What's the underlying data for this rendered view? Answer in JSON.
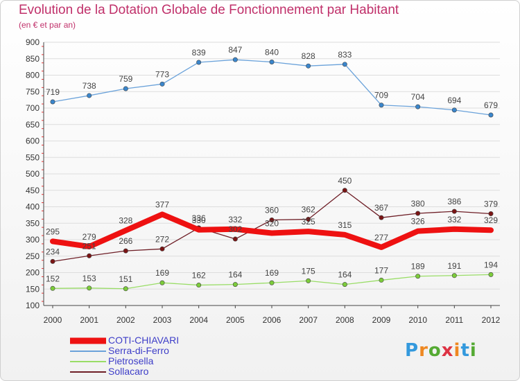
{
  "title": "Evolution de la Dotation Globale de Fonctionnement par Habitant",
  "subtitle": "(en € et par an)",
  "chart_data": {
    "type": "line",
    "title": "Evolution de la Dotation Globale de Fonctionnement par Habitant",
    "subtitle": "(en € et par an)",
    "xlabel": "",
    "ylabel": "",
    "x": [
      "2000",
      "2001",
      "2002",
      "2003",
      "2004",
      "2005",
      "2006",
      "2007",
      "2008",
      "2009",
      "2010",
      "2011",
      "2012"
    ],
    "ylim": [
      100,
      900
    ],
    "yticks": [
      "100",
      "150",
      "200",
      "250",
      "300",
      "350",
      "400",
      "450",
      "500",
      "550",
      "600",
      "650",
      "700",
      "750",
      "800",
      "850",
      "900"
    ],
    "grid": "horizontal",
    "legend_position": "bottom-left",
    "series": [
      {
        "name": "Sollacaro",
        "color": "#6e1e26",
        "marker_color": "#7a1414",
        "bold": false,
        "values": [
          234,
          251,
          266,
          272,
          336,
          302,
          360,
          362,
          450,
          367,
          380,
          386,
          379
        ]
      },
      {
        "name": "Pietrosella",
        "color": "#99dd66",
        "marker_color": "#7ccc3a",
        "bold": false,
        "values": [
          152,
          153,
          151,
          169,
          162,
          164,
          169,
          175,
          164,
          177,
          189,
          191,
          194
        ]
      },
      {
        "name": "Serra-di-Ferro",
        "color": "#6aa2da",
        "marker_color": "#3a86cc",
        "bold": false,
        "values": [
          719,
          738,
          759,
          773,
          839,
          847,
          840,
          828,
          833,
          709,
          704,
          694,
          679
        ]
      },
      {
        "name": "COTI-CHIAVARI",
        "color": "#ee1111",
        "marker_color": "#ee1111",
        "bold": true,
        "values": [
          295,
          279,
          328,
          377,
          330,
          332,
          320,
          325,
          315,
          277,
          326,
          332,
          329
        ]
      }
    ],
    "legend_order": [
      "COTI-CHIAVARI",
      "Serra-di-Ferro",
      "Pietrosella",
      "Sollacaro"
    ]
  },
  "logo": {
    "letters": [
      "P",
      "r",
      "o",
      "x",
      "i",
      "t",
      "i"
    ],
    "colors": [
      "#3399dd",
      "#ee8822",
      "#55aa33",
      "#dd3344",
      "#ee8822",
      "#3399dd",
      "#55aa33"
    ]
  }
}
